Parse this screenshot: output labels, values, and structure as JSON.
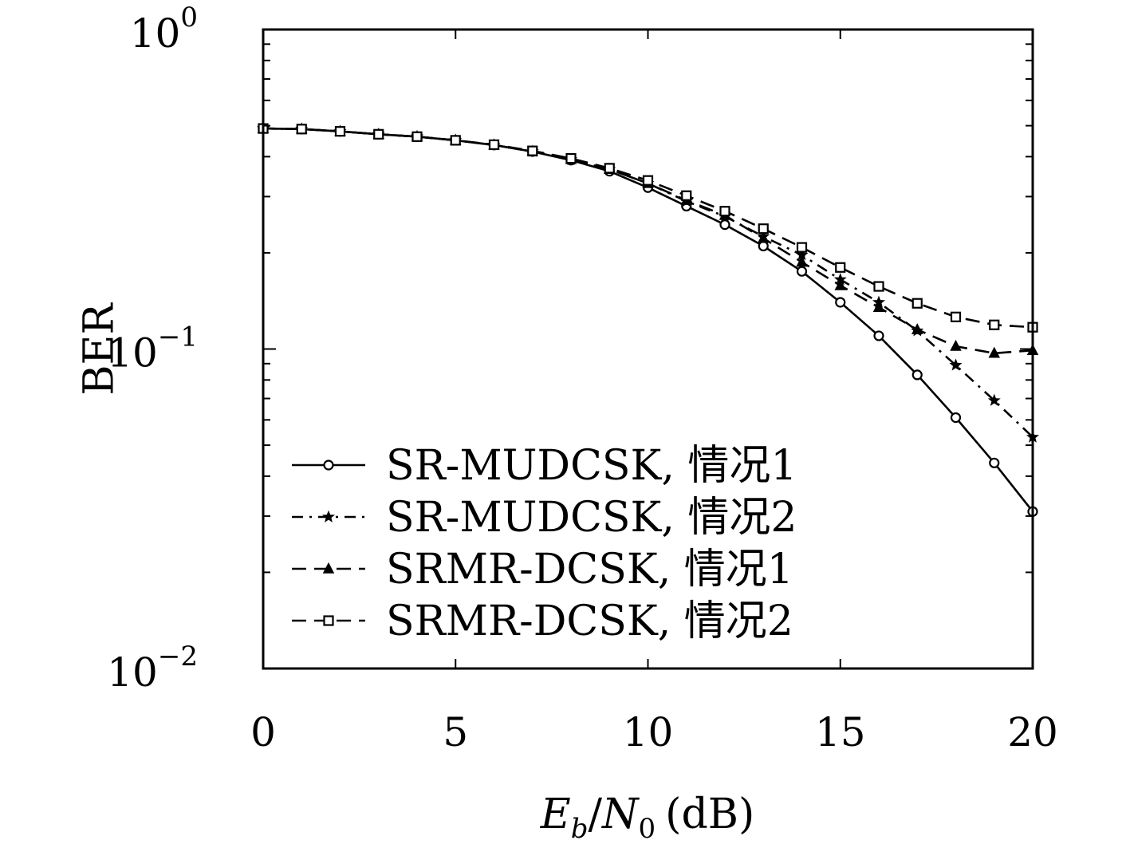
{
  "chart_data": {
    "type": "line",
    "title": "",
    "xlabel": {
      "e": "E",
      "b": "b",
      "slash": "/",
      "n": "N",
      "zero": "0",
      "unit": "(dB)"
    },
    "ylabel": "BER",
    "xlim": [
      0,
      20
    ],
    "ylim": [
      0.01,
      1
    ],
    "yscale": "log",
    "grid": false,
    "legend_position": "lower-left",
    "x_ticks": [
      "0",
      "5",
      "10",
      "15",
      "20"
    ],
    "y_ticks": [
      {
        "base": "10",
        "exp": "0"
      },
      {
        "base": "10",
        "exp": "−1"
      },
      {
        "base": "10",
        "exp": "−2"
      }
    ],
    "x": [
      0,
      1,
      2,
      3,
      4,
      5,
      6,
      7,
      8,
      9,
      10,
      11,
      12,
      13,
      14,
      15,
      16,
      17,
      18,
      19,
      20
    ],
    "series": [
      {
        "name": "SR-MUDCSK, 情况1",
        "marker": "circle",
        "dash": "solid",
        "values": [
          0.49,
          0.488,
          0.48,
          0.47,
          0.462,
          0.45,
          0.435,
          0.415,
          0.39,
          0.36,
          0.32,
          0.28,
          0.245,
          0.21,
          0.175,
          0.14,
          0.11,
          0.083,
          0.061,
          0.044,
          0.031
        ]
      },
      {
        "name": "SR-MUDCSK, 情况2",
        "marker": "star",
        "dash": "dashdot",
        "values": [
          0.49,
          0.488,
          0.48,
          0.47,
          0.462,
          0.45,
          0.435,
          0.415,
          0.392,
          0.365,
          0.33,
          0.29,
          0.26,
          0.225,
          0.197,
          0.165,
          0.14,
          0.114,
          0.089,
          0.069,
          0.053
        ]
      },
      {
        "name": "SRMR-DCSK, 情况1",
        "marker": "triangle",
        "dash": "dashed",
        "values": [
          0.49,
          0.488,
          0.48,
          0.47,
          0.462,
          0.45,
          0.435,
          0.415,
          0.392,
          0.365,
          0.33,
          0.292,
          0.262,
          0.222,
          0.187,
          0.158,
          0.135,
          0.115,
          0.102,
          0.097,
          0.099
        ]
      },
      {
        "name": "SRMR-DCSK, 情况2",
        "marker": "square",
        "dash": "dashed",
        "values": [
          0.49,
          0.488,
          0.48,
          0.47,
          0.462,
          0.45,
          0.436,
          0.417,
          0.395,
          0.368,
          0.337,
          0.302,
          0.27,
          0.238,
          0.208,
          0.18,
          0.157,
          0.139,
          0.126,
          0.119,
          0.117
        ]
      }
    ],
    "colors": {
      "line": "#000000",
      "background": "#ffffff"
    }
  }
}
